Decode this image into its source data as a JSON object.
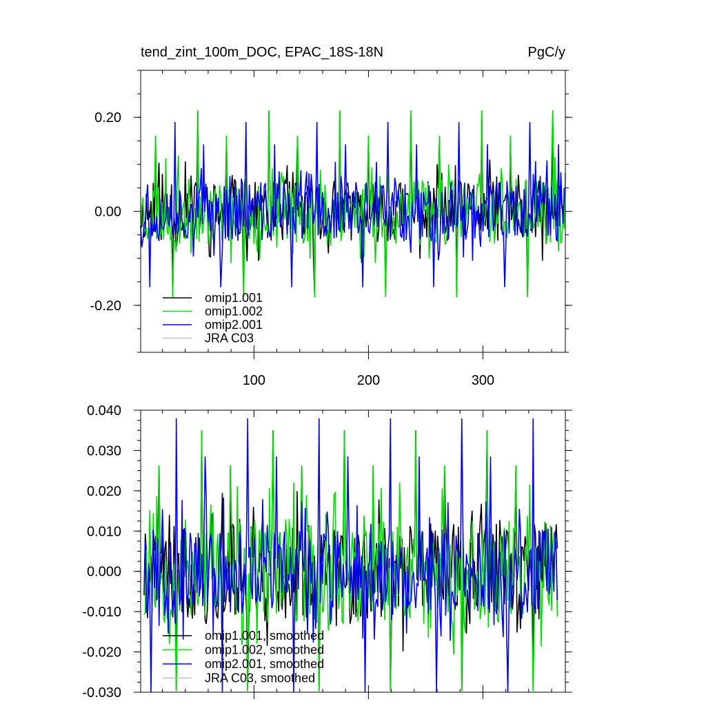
{
  "chart_data": [
    {
      "type": "line",
      "title": "tend_zint_100m_DOC, EPAC_18S-18N",
      "units": "PgC/y",
      "xlabel": "",
      "ylabel": "",
      "xlim": [
        1,
        372
      ],
      "ylim": [
        -0.3,
        0.3
      ],
      "x_ticks": [
        100,
        200,
        300
      ],
      "x_tick_labels": [
        "100",
        "200",
        "300"
      ],
      "y_ticks": [
        -0.2,
        0.0,
        0.2
      ],
      "y_tick_labels": [
        "-0.20",
        "0.00",
        "0.20"
      ],
      "legend_position": "bottom-left",
      "series": [
        {
          "name": "omip1.001",
          "color": "#000000",
          "seed": 11,
          "amplitude": 0.065,
          "spike": 0.21,
          "spike_every": 62,
          "offset": 0
        },
        {
          "name": "omip1.002",
          "color": "#00dd00",
          "seed": 23,
          "amplitude": 0.07,
          "spike": 0.215,
          "spike_every": 62,
          "offset": 0
        },
        {
          "name": "omip2.001",
          "color": "#0000ff",
          "seed": 37,
          "amplitude": 0.065,
          "spike": 0.19,
          "spike_every": 62,
          "offset": 20
        },
        {
          "name": "JRA C03",
          "color": "#c0c0c0",
          "seed": 0,
          "amplitude": 0,
          "spike": 0,
          "spike_every": 0,
          "offset": 0,
          "empty": true
        }
      ],
      "n_points": 372
    },
    {
      "type": "line",
      "title": "",
      "xlabel": "",
      "ylabel": "",
      "xlim": [
        1,
        372
      ],
      "ylim": [
        -0.03,
        0.04
      ],
      "x_ticks": [
        100,
        200,
        300
      ],
      "x_tick_labels": [
        "",
        "",
        ""
      ],
      "y_ticks": [
        -0.03,
        -0.02,
        -0.01,
        0.0,
        0.01,
        0.02,
        0.03,
        0.04
      ],
      "y_tick_labels": [
        "-0.030",
        "-0.020",
        "-0.010",
        "0.000",
        "0.010",
        "0.020",
        "0.030",
        "0.040"
      ],
      "legend_position": "bottom-left",
      "series": [
        {
          "name": "omip1.001, smoothed",
          "color": "#000000",
          "seed": 41,
          "amplitude": 0.012,
          "spike": 0.035,
          "spike_every": 62,
          "offset": 0
        },
        {
          "name": "omip1.002, smoothed",
          "color": "#00dd00",
          "seed": 53,
          "amplitude": 0.013,
          "spike": 0.035,
          "spike_every": 62,
          "offset": 0
        },
        {
          "name": "omip2.001, smoothed",
          "color": "#0000ff",
          "seed": 67,
          "amplitude": 0.011,
          "spike": 0.038,
          "spike_every": 62,
          "offset": 22
        },
        {
          "name": "JRA C03, smoothed",
          "color": "#c0c0c0",
          "seed": 0,
          "amplitude": 0,
          "spike": 0,
          "spike_every": 0,
          "offset": 0,
          "empty": true
        }
      ],
      "n_points": 360
    }
  ]
}
